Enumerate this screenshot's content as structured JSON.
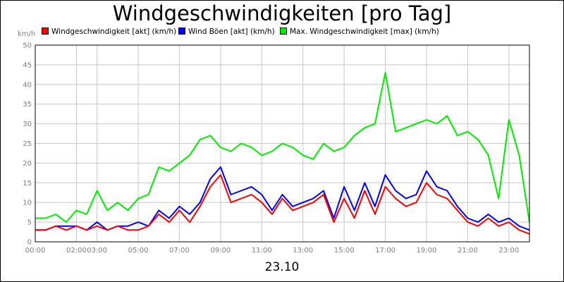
{
  "chart_data": {
    "type": "line",
    "title": "Windgeschwindigkeiten [pro Tag]",
    "ylabel": "km/h",
    "xlabel": "23.10",
    "ylim": [
      0,
      50
    ],
    "xlim": [
      0,
      24
    ],
    "yticks": [
      "0",
      "5",
      "10",
      "15",
      "20",
      "25",
      "30",
      "35",
      "40",
      "45",
      "50"
    ],
    "xticks": [
      {
        "x": 0,
        "label": "00:00"
      },
      {
        "x": 2,
        "label": "02:00"
      },
      {
        "x": 3,
        "label": "03:00"
      },
      {
        "x": 5,
        "label": "05:00"
      },
      {
        "x": 7,
        "label": "07:00"
      },
      {
        "x": 9,
        "label": "09:00"
      },
      {
        "x": 11,
        "label": "11:00"
      },
      {
        "x": 13,
        "label": "13:00"
      },
      {
        "x": 15,
        "label": "15:00"
      },
      {
        "x": 17,
        "label": "17:00"
      },
      {
        "x": 19,
        "label": "19:00"
      },
      {
        "x": 21,
        "label": "21:00"
      },
      {
        "x": 23,
        "label": "23:00"
      }
    ],
    "grid": true,
    "legend_position": "top",
    "series": [
      {
        "name": "Windgeschwindigkeit [akt] (km/h)",
        "color": "#ff0000",
        "x": [
          0,
          0.5,
          1,
          1.5,
          2,
          2.5,
          3,
          3.5,
          4,
          4.5,
          5,
          5.5,
          6,
          6.5,
          7,
          7.5,
          8,
          8.5,
          9,
          9.5,
          10,
          10.5,
          11,
          11.5,
          12,
          12.5,
          13,
          13.5,
          14,
          14.5,
          15,
          15.5,
          16,
          16.5,
          17,
          17.5,
          18,
          18.5,
          19,
          19.5,
          20,
          20.5,
          21,
          21.5,
          22,
          22.5,
          23,
          23.5,
          24
        ],
        "values": [
          3,
          3,
          4,
          3,
          4,
          3,
          4,
          3,
          4,
          3,
          3,
          4,
          7,
          5,
          8,
          5,
          9,
          14,
          17,
          10,
          11,
          12,
          10,
          7,
          11,
          8,
          9,
          10,
          12,
          5,
          11,
          6,
          13,
          7,
          14,
          11,
          9,
          10,
          15,
          12,
          11,
          8,
          5,
          4,
          6,
          4,
          5,
          3,
          2
        ]
      },
      {
        "name": "Wind Böen [akt] (km/h)",
        "color": "#0000ff",
        "x": [
          0,
          0.5,
          1,
          1.5,
          2,
          2.5,
          3,
          3.5,
          4,
          4.5,
          5,
          5.5,
          6,
          6.5,
          7,
          7.5,
          8,
          8.5,
          9,
          9.5,
          10,
          10.5,
          11,
          11.5,
          12,
          12.5,
          13,
          13.5,
          14,
          14.5,
          15,
          15.5,
          16,
          16.5,
          17,
          17.5,
          18,
          18.5,
          19,
          19.5,
          20,
          20.5,
          21,
          21.5,
          22,
          22.5,
          23,
          23.5,
          24
        ],
        "values": [
          3,
          3,
          4,
          4,
          4,
          3,
          5,
          3,
          4,
          4,
          5,
          4,
          8,
          6,
          9,
          7,
          10,
          16,
          19,
          12,
          13,
          14,
          12,
          8,
          12,
          9,
          10,
          11,
          13,
          6,
          14,
          8,
          15,
          9,
          17,
          13,
          11,
          12,
          18,
          14,
          13,
          9,
          6,
          5,
          7,
          5,
          6,
          4,
          3
        ]
      },
      {
        "name": "Max. Windgeschwindigkeit [max] (km/h)",
        "color": "#00ee00",
        "x": [
          0,
          0.5,
          1,
          1.5,
          2,
          2.5,
          3,
          3.5,
          4,
          4.5,
          5,
          5.5,
          6,
          6.5,
          7,
          7.5,
          8,
          8.5,
          9,
          9.5,
          10,
          10.5,
          11,
          11.5,
          12,
          12.5,
          13,
          13.5,
          14,
          14.5,
          15,
          15.5,
          16,
          16.5,
          17,
          17.5,
          18,
          18.5,
          19,
          19.5,
          20,
          20.5,
          21,
          21.5,
          22,
          22.5,
          23,
          23.5,
          24
        ],
        "values": [
          6,
          6,
          7,
          5,
          8,
          7,
          13,
          8,
          10,
          8,
          11,
          12,
          19,
          18,
          20,
          22,
          26,
          27,
          24,
          23,
          25,
          24,
          22,
          23,
          25,
          24,
          22,
          21,
          25,
          23,
          24,
          27,
          29,
          30,
          43,
          28,
          29,
          30,
          31,
          30,
          32,
          27,
          28,
          26,
          22,
          11,
          31,
          22,
          5
        ]
      }
    ]
  }
}
